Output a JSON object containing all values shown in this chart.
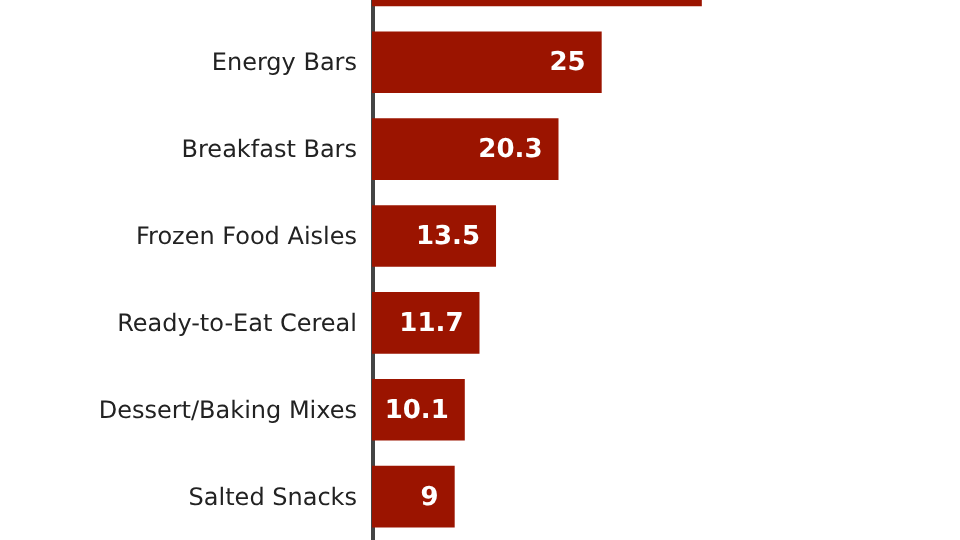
{
  "chart_data": {
    "type": "bar",
    "orientation": "horizontal",
    "categories": [
      null,
      "Energy Bars",
      "Breakfast Bars",
      "Frozen Food Aisles",
      "Ready-to-Eat Cereal",
      "Dessert/Baking Mixes",
      "Salted Snacks"
    ],
    "values": [
      35.9,
      25,
      20.3,
      13.5,
      11.7,
      10.1,
      9
    ],
    "value_labels": [
      null,
      "25",
      "20.3",
      "13.5",
      "11.7",
      "10.1",
      "9"
    ],
    "color": "#9b1400",
    "xlim": [
      0,
      64
    ],
    "grid": false
  }
}
